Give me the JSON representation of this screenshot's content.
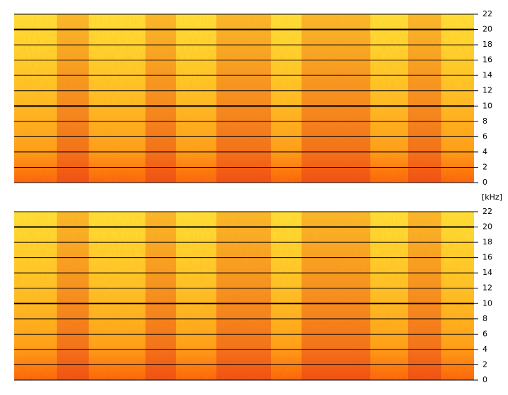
{
  "chart_data": [
    {
      "type": "spectrogram",
      "ylim": [
        0,
        22
      ],
      "yticks": [
        0,
        2,
        4,
        6,
        8,
        10,
        12,
        14,
        16,
        18,
        20,
        22
      ],
      "grid": true
    },
    {
      "type": "spectrogram",
      "ylim": [
        0,
        22
      ],
      "yticks": [
        0,
        2,
        4,
        6,
        8,
        10,
        12,
        14,
        16,
        18,
        20,
        22
      ],
      "grid": true,
      "y_label": "[kHz]"
    }
  ]
}
